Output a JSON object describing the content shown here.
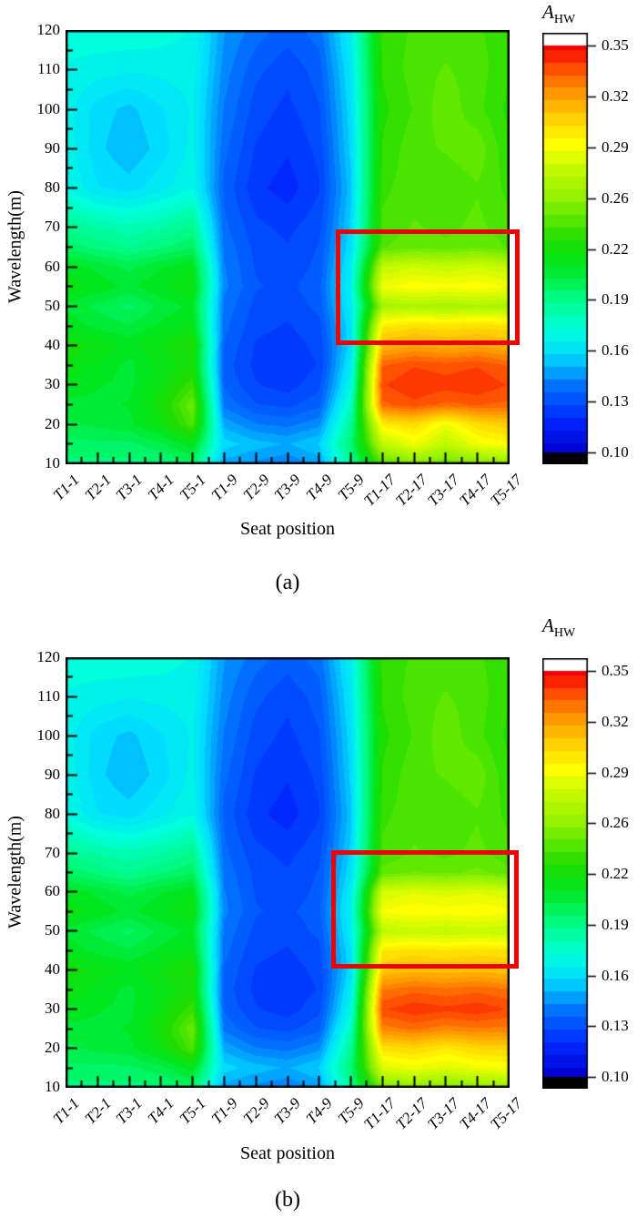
{
  "figure": {
    "panels": [
      {
        "caption": "(a)",
        "xlabel": "Seat position",
        "ylabel": "Wavelength(m)",
        "colorbar_title_main": "A",
        "colorbar_title_sub": "HW"
      },
      {
        "caption": "(b)",
        "xlabel": "Seat position",
        "ylabel": "Wavelength(m)",
        "colorbar_title_main": "A",
        "colorbar_title_sub": "HW"
      }
    ]
  },
  "chart_data": [
    {
      "type": "heatmap",
      "panel": "a",
      "title": "",
      "xlabel": "Seat position",
      "ylabel": "Wavelength(m)",
      "colorbar_label": "A_HW",
      "color_range": [
        0.1,
        0.35
      ],
      "colorbar_ticks": [
        "0.35",
        "0.32",
        "0.29",
        "0.26",
        "0.22",
        "0.19",
        "0.16",
        "0.13",
        "0.10"
      ],
      "y_axis_ticks": [
        120,
        110,
        100,
        90,
        80,
        70,
        60,
        50,
        40,
        30,
        20,
        10
      ],
      "x_categories": [
        "T1-1",
        "T2-1",
        "T3-1",
        "T4-1",
        "T5-1",
        "T1-9",
        "T2-9",
        "T3-9",
        "T4-9",
        "T5-9",
        "T1-17",
        "T2-17",
        "T3-17",
        "T4-17",
        "T5-17"
      ],
      "y_wavelengths": [
        120,
        110,
        100,
        90,
        80,
        70,
        65,
        60,
        55,
        50,
        45,
        40,
        35,
        30,
        25,
        20,
        15,
        10
      ],
      "values": [
        [
          0.175,
          0.176,
          0.177,
          0.175,
          0.172,
          0.148,
          0.14,
          0.135,
          0.14,
          0.168,
          0.235,
          0.238,
          0.24,
          0.238,
          0.235
        ],
        [
          0.172,
          0.17,
          0.168,
          0.169,
          0.17,
          0.145,
          0.134,
          0.129,
          0.135,
          0.164,
          0.233,
          0.24,
          0.243,
          0.24,
          0.233
        ],
        [
          0.17,
          0.16,
          0.156,
          0.162,
          0.168,
          0.142,
          0.13,
          0.126,
          0.132,
          0.161,
          0.231,
          0.238,
          0.246,
          0.239,
          0.231
        ],
        [
          0.171,
          0.159,
          0.153,
          0.16,
          0.169,
          0.139,
          0.127,
          0.123,
          0.129,
          0.159,
          0.233,
          0.241,
          0.243,
          0.246,
          0.233
        ],
        [
          0.173,
          0.163,
          0.16,
          0.166,
          0.172,
          0.136,
          0.124,
          0.12,
          0.127,
          0.156,
          0.236,
          0.241,
          0.239,
          0.242,
          0.236
        ],
        [
          0.192,
          0.187,
          0.184,
          0.187,
          0.193,
          0.139,
          0.129,
          0.126,
          0.131,
          0.159,
          0.239,
          0.243,
          0.241,
          0.244,
          0.239
        ],
        [
          0.201,
          0.196,
          0.192,
          0.197,
          0.202,
          0.141,
          0.131,
          0.128,
          0.133,
          0.162,
          0.242,
          0.246,
          0.244,
          0.247,
          0.242
        ],
        [
          0.216,
          0.211,
          0.206,
          0.212,
          0.217,
          0.143,
          0.132,
          0.129,
          0.134,
          0.166,
          0.272,
          0.277,
          0.274,
          0.277,
          0.272
        ],
        [
          0.221,
          0.216,
          0.211,
          0.217,
          0.222,
          0.144,
          0.133,
          0.131,
          0.136,
          0.169,
          0.286,
          0.291,
          0.289,
          0.291,
          0.287
        ],
        [
          0.211,
          0.206,
          0.201,
          0.209,
          0.214,
          0.141,
          0.131,
          0.129,
          0.134,
          0.166,
          0.263,
          0.266,
          0.263,
          0.266,
          0.264
        ],
        [
          0.216,
          0.211,
          0.208,
          0.214,
          0.219,
          0.139,
          0.129,
          0.127,
          0.131,
          0.163,
          0.296,
          0.301,
          0.299,
          0.301,
          0.299
        ],
        [
          0.226,
          0.221,
          0.216,
          0.222,
          0.229,
          0.137,
          0.127,
          0.125,
          0.129,
          0.161,
          0.312,
          0.317,
          0.314,
          0.317,
          0.312
        ],
        [
          0.221,
          0.216,
          0.211,
          0.219,
          0.226,
          0.135,
          0.126,
          0.123,
          0.128,
          0.166,
          0.332,
          0.337,
          0.335,
          0.337,
          0.332
        ],
        [
          0.216,
          0.213,
          0.211,
          0.221,
          0.236,
          0.137,
          0.128,
          0.125,
          0.131,
          0.171,
          0.337,
          0.342,
          0.34,
          0.342,
          0.337
        ],
        [
          0.211,
          0.211,
          0.213,
          0.226,
          0.247,
          0.141,
          0.133,
          0.131,
          0.136,
          0.181,
          0.331,
          0.336,
          0.331,
          0.333,
          0.331
        ],
        [
          0.206,
          0.209,
          0.211,
          0.221,
          0.241,
          0.151,
          0.143,
          0.141,
          0.146,
          0.191,
          0.296,
          0.301,
          0.286,
          0.301,
          0.306
        ],
        [
          0.201,
          0.201,
          0.201,
          0.206,
          0.216,
          0.16,
          0.155,
          0.152,
          0.158,
          0.198,
          0.271,
          0.286,
          0.271,
          0.286,
          0.291
        ],
        [
          0.196,
          0.196,
          0.196,
          0.196,
          0.201,
          0.15,
          0.146,
          0.143,
          0.149,
          0.19,
          0.241,
          0.251,
          0.246,
          0.251,
          0.256
        ]
      ],
      "annotation_box": {
        "color": "#f00000",
        "x_col_from": 8.55,
        "x_col_to": 14.37,
        "wavelength_from": 69.3,
        "wavelength_to": 40.0
      }
    },
    {
      "type": "heatmap",
      "panel": "b",
      "title": "",
      "xlabel": "Seat position",
      "ylabel": "Wavelength(m)",
      "colorbar_label": "A_HW",
      "color_range": [
        0.1,
        0.35
      ],
      "colorbar_ticks": [
        "0.35",
        "0.32",
        "0.29",
        "0.26",
        "0.22",
        "0.19",
        "0.16",
        "0.13",
        "0.10"
      ],
      "y_axis_ticks": [
        120,
        110,
        100,
        90,
        80,
        70,
        60,
        50,
        40,
        30,
        20,
        10
      ],
      "x_categories": [
        "T1-1",
        "T2-1",
        "T3-1",
        "T4-1",
        "T5-1",
        "T1-9",
        "T2-9",
        "T3-9",
        "T4-9",
        "T5-9",
        "T1-17",
        "T2-17",
        "T3-17",
        "T4-17",
        "T5-17"
      ],
      "y_wavelengths": [
        120,
        110,
        100,
        90,
        80,
        70,
        65,
        60,
        55,
        50,
        45,
        40,
        35,
        30,
        25,
        20,
        15,
        10
      ],
      "values": [
        [
          0.175,
          0.176,
          0.177,
          0.175,
          0.172,
          0.148,
          0.14,
          0.135,
          0.14,
          0.168,
          0.235,
          0.238,
          0.24,
          0.238,
          0.235
        ],
        [
          0.172,
          0.17,
          0.168,
          0.169,
          0.17,
          0.145,
          0.134,
          0.129,
          0.135,
          0.164,
          0.233,
          0.24,
          0.243,
          0.24,
          0.233
        ],
        [
          0.17,
          0.16,
          0.156,
          0.162,
          0.168,
          0.142,
          0.13,
          0.126,
          0.132,
          0.161,
          0.231,
          0.238,
          0.246,
          0.239,
          0.231
        ],
        [
          0.171,
          0.159,
          0.153,
          0.16,
          0.169,
          0.139,
          0.127,
          0.123,
          0.129,
          0.159,
          0.233,
          0.241,
          0.243,
          0.246,
          0.233
        ],
        [
          0.173,
          0.163,
          0.16,
          0.166,
          0.172,
          0.136,
          0.124,
          0.12,
          0.127,
          0.156,
          0.236,
          0.241,
          0.239,
          0.242,
          0.236
        ],
        [
          0.192,
          0.187,
          0.184,
          0.187,
          0.193,
          0.139,
          0.129,
          0.126,
          0.131,
          0.159,
          0.239,
          0.243,
          0.241,
          0.244,
          0.239
        ],
        [
          0.201,
          0.196,
          0.192,
          0.197,
          0.202,
          0.141,
          0.131,
          0.128,
          0.133,
          0.162,
          0.244,
          0.248,
          0.246,
          0.249,
          0.244
        ],
        [
          0.216,
          0.211,
          0.206,
          0.212,
          0.217,
          0.143,
          0.132,
          0.129,
          0.134,
          0.166,
          0.278,
          0.282,
          0.28,
          0.282,
          0.278
        ],
        [
          0.221,
          0.216,
          0.211,
          0.217,
          0.222,
          0.144,
          0.133,
          0.131,
          0.136,
          0.169,
          0.288,
          0.292,
          0.29,
          0.292,
          0.289
        ],
        [
          0.211,
          0.206,
          0.201,
          0.209,
          0.214,
          0.141,
          0.131,
          0.129,
          0.134,
          0.166,
          0.271,
          0.274,
          0.272,
          0.274,
          0.272
        ],
        [
          0.216,
          0.211,
          0.208,
          0.214,
          0.219,
          0.139,
          0.129,
          0.127,
          0.131,
          0.163,
          0.297,
          0.3,
          0.298,
          0.3,
          0.299
        ],
        [
          0.226,
          0.221,
          0.216,
          0.222,
          0.229,
          0.137,
          0.127,
          0.125,
          0.129,
          0.161,
          0.307,
          0.311,
          0.309,
          0.311,
          0.308
        ],
        [
          0.221,
          0.216,
          0.211,
          0.219,
          0.226,
          0.135,
          0.126,
          0.123,
          0.128,
          0.166,
          0.327,
          0.331,
          0.329,
          0.331,
          0.328
        ],
        [
          0.216,
          0.213,
          0.211,
          0.221,
          0.236,
          0.137,
          0.128,
          0.125,
          0.131,
          0.171,
          0.337,
          0.341,
          0.339,
          0.341,
          0.337
        ],
        [
          0.211,
          0.211,
          0.213,
          0.226,
          0.247,
          0.141,
          0.133,
          0.131,
          0.136,
          0.181,
          0.325,
          0.329,
          0.325,
          0.327,
          0.326
        ],
        [
          0.206,
          0.209,
          0.211,
          0.221,
          0.241,
          0.151,
          0.143,
          0.141,
          0.146,
          0.191,
          0.299,
          0.303,
          0.297,
          0.303,
          0.304
        ],
        [
          0.201,
          0.201,
          0.201,
          0.206,
          0.216,
          0.16,
          0.155,
          0.152,
          0.158,
          0.198,
          0.281,
          0.286,
          0.281,
          0.286,
          0.288
        ],
        [
          0.196,
          0.196,
          0.196,
          0.196,
          0.201,
          0.15,
          0.146,
          0.143,
          0.149,
          0.19,
          0.249,
          0.256,
          0.252,
          0.256,
          0.259
        ]
      ],
      "annotation_box": {
        "color": "#f00000",
        "x_col_from": 8.4,
        "x_col_to": 14.33,
        "wavelength_from": 70.5,
        "wavelength_to": 40.2
      }
    }
  ]
}
